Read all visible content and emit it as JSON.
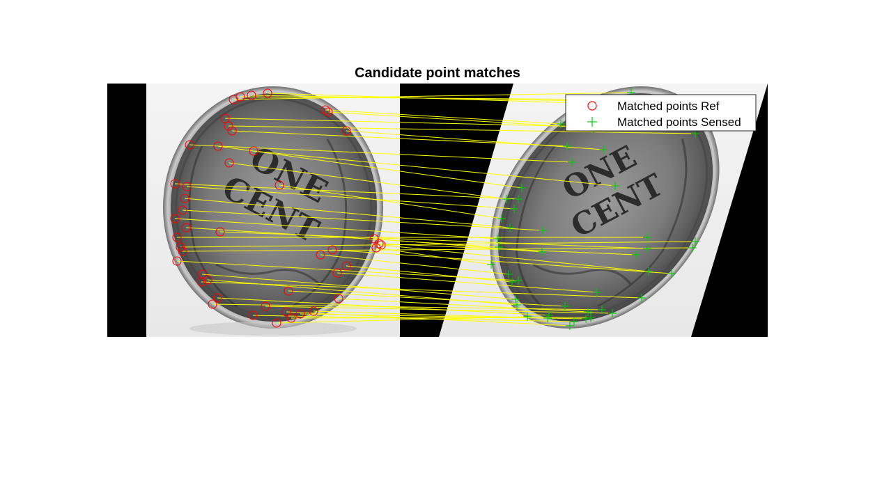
{
  "title": "Candidate point matches",
  "legend": {
    "entries": [
      {
        "label": "Matched points Ref",
        "marker": "circle-icon",
        "color": "#ff0000"
      },
      {
        "label": "Matched points Sensed",
        "marker": "plus-icon",
        "color": "#00cc00"
      }
    ]
  },
  "coin": {
    "line1": "ONE",
    "line2": "CENT"
  },
  "match_line_color": "#ffff00",
  "ref_marker_color": "#ff0000",
  "sensed_marker_color": "#00cc00",
  "matches": {
    "ref": [
      [
        335,
        143
      ],
      [
        345,
        139
      ],
      [
        361,
        137
      ],
      [
        384,
        134
      ],
      [
        467,
        158
      ],
      [
        471,
        161
      ],
      [
        323,
        170
      ],
      [
        328,
        181
      ],
      [
        333,
        188
      ],
      [
        497,
        188
      ],
      [
        272,
        208
      ],
      [
        313,
        210
      ],
      [
        364,
        217
      ],
      [
        329,
        234
      ],
      [
        251,
        264
      ],
      [
        268,
        268
      ],
      [
        401,
        266
      ],
      [
        265,
        285
      ],
      [
        262,
        302
      ],
      [
        251,
        314
      ],
      [
        267,
        327
      ],
      [
        254,
        341
      ],
      [
        316,
        333
      ],
      [
        259,
        355
      ],
      [
        262,
        361
      ],
      [
        537,
        343
      ],
      [
        544,
        350
      ],
      [
        540,
        356
      ],
      [
        547,
        352
      ],
      [
        477,
        359
      ],
      [
        460,
        366
      ],
      [
        254,
        375
      ],
      [
        497,
        382
      ],
      [
        484,
        392
      ],
      [
        290,
        394
      ],
      [
        289,
        405
      ],
      [
        298,
        402
      ],
      [
        414,
        418
      ],
      [
        312,
        428
      ],
      [
        486,
        429
      ],
      [
        305,
        437
      ],
      [
        381,
        440
      ],
      [
        363,
        453
      ],
      [
        411,
        448
      ],
      [
        418,
        457
      ],
      [
        431,
        451
      ],
      [
        450,
        447
      ],
      [
        397,
        464
      ]
    ],
    "sensed": [
      [
        906,
        133
      ],
      [
        877,
        143
      ],
      [
        845,
        145
      ],
      [
        829,
        148
      ],
      [
        805,
        178
      ],
      [
        852,
        184
      ],
      [
        844,
        182
      ],
      [
        998,
        192
      ],
      [
        814,
        210
      ],
      [
        866,
        215
      ],
      [
        821,
        233
      ],
      [
        749,
        270
      ],
      [
        883,
        267
      ],
      [
        727,
        286
      ],
      [
        744,
        286
      ],
      [
        738,
        300
      ],
      [
        720,
        314
      ],
      [
        732,
        327
      ],
      [
        779,
        331
      ],
      [
        714,
        343
      ],
      [
        716,
        355
      ],
      [
        929,
        341
      ],
      [
        929,
        357
      ],
      [
        998,
        347
      ],
      [
        994,
        356
      ],
      [
        778,
        362
      ],
      [
        913,
        366
      ],
      [
        705,
        380
      ],
      [
        931,
        390
      ],
      [
        964,
        393
      ],
      [
        730,
        394
      ],
      [
        744,
        403
      ],
      [
        735,
        405
      ],
      [
        857,
        420
      ],
      [
        740,
        430
      ],
      [
        921,
        428
      ],
      [
        742,
        438
      ],
      [
        811,
        440
      ],
      [
        788,
        453
      ],
      [
        844,
        448
      ],
      [
        864,
        445
      ],
      [
        879,
        450
      ],
      [
        824,
        462
      ],
      [
        818,
        468
      ],
      [
        848,
        456
      ],
      [
        841,
        458
      ],
      [
        786,
        457
      ],
      [
        757,
        455
      ]
    ]
  }
}
